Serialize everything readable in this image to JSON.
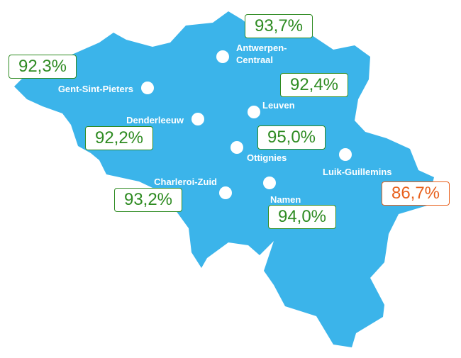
{
  "stations": [
    {
      "name": "Antwerpen-Centraal",
      "label": "93,7%"
    },
    {
      "name": "Gent-Sint-Pieters",
      "label": "92,3%"
    },
    {
      "name": "Leuven",
      "label": "92,4%"
    },
    {
      "name": "Denderleeuw",
      "label": "92,2%"
    },
    {
      "name": "Ottignies",
      "label": "95,0%"
    },
    {
      "name": "Luik-Guillemins",
      "label": "86,7%"
    },
    {
      "name": "Charleroi-Zuid",
      "label": "93,2%"
    },
    {
      "name": "Namen",
      "label": "94,0%"
    }
  ]
}
